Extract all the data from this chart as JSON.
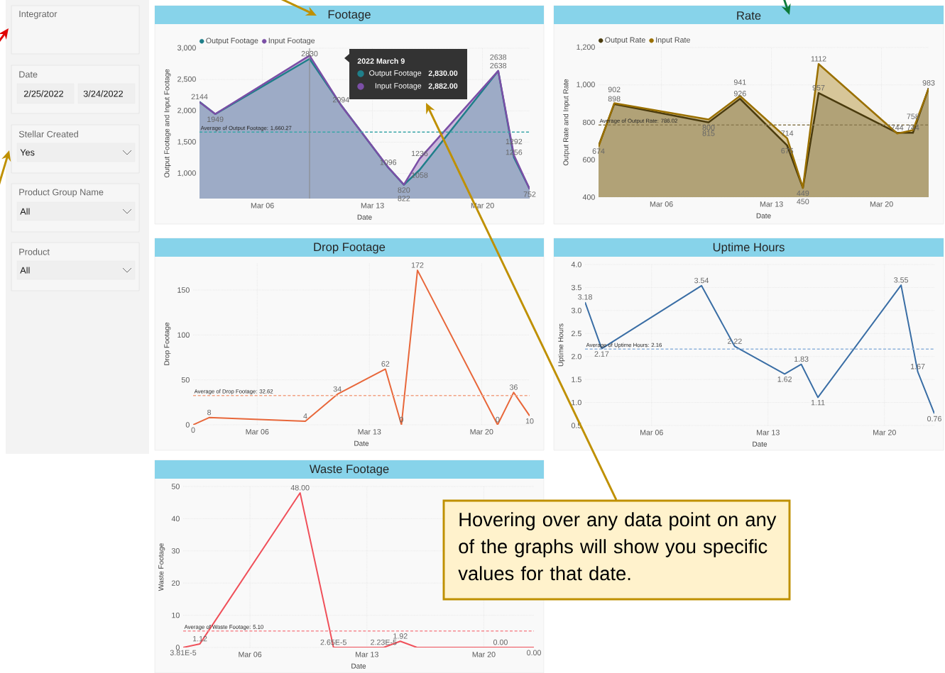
{
  "chart_data": [
    {
      "type": "other",
      "annotations": [
        "Integrator",
        "Date",
        "2/25/2022",
        "3/24/2022",
        "Stellar Created",
        "Yes",
        "Product Group Name",
        "All",
        "Product",
        "All"
      ]
    },
    {
      "type": "area",
      "title": "Footage",
      "xlabel": "Date",
      "ylabel": "Output Footage and Input Footage",
      "x": [
        "2022-03-02",
        "2022-03-03",
        "2022-03-09",
        "2022-03-11",
        "2022-03-14",
        "2022-03-15",
        "2022-03-16",
        "2022-03-21",
        "2022-03-22",
        "2022-03-23"
      ],
      "xlim": [
        "2022-03-02",
        "2022-03-23"
      ],
      "xticks": [
        {
          "value": "2022-03-06",
          "label": "Mar 06"
        },
        {
          "value": "2022-03-13",
          "label": "Mar 13"
        },
        {
          "value": "2022-03-20",
          "label": "Mar 20"
        }
      ],
      "ylim": [
        600,
        3000
      ],
      "yticks": [
        {
          "value": 1000,
          "label": "1,000"
        },
        {
          "value": 1500,
          "label": "1,500"
        },
        {
          "value": 2000,
          "label": "2,000"
        },
        {
          "value": 2500,
          "label": "2,500"
        },
        {
          "value": 3000,
          "label": "3,000"
        }
      ],
      "grid": true,
      "legend": "top left",
      "series": [
        {
          "name": "Output Footage",
          "color": "#1f7f8a",
          "values": [
            2144,
            1949,
            2830,
            2094,
            1096,
            820,
            1058,
            2638,
            1256,
            752
          ],
          "value_labels": [
            "2144",
            "1949",
            "2830",
            "2094",
            "1096",
            "820",
            "1058",
            "2638",
            "1256",
            "752"
          ]
        },
        {
          "name": "Input Footage",
          "color": "#7b4fa6",
          "values": [
            2140,
            1950,
            2882,
            2090,
            1100,
            822,
            1236,
            2638,
            1292,
            750
          ],
          "value_labels": [
            null,
            null,
            null,
            null,
            null,
            "822",
            "1236",
            "2638",
            "1292",
            null
          ]
        }
      ],
      "ref_lines": [
        {
          "axis": "y",
          "value": 1660.27,
          "label": "Average of Output Footage: 1,660.27",
          "color": "#3aa6a8",
          "line_style": "dashed"
        },
        {
          "axis": "x",
          "value": "2022-03-09",
          "color": "#8a8a8a",
          "line_style": "solid"
        }
      ],
      "annotations": [
        "2022 March 9",
        "Output Footage",
        "2,830.00",
        "Input Footage",
        "2,882.00"
      ]
    },
    {
      "type": "area",
      "title": "Rate",
      "xlabel": "Date",
      "ylabel": "Output Rate and Input Rate",
      "x": [
        "2022-03-02",
        "2022-03-03",
        "2022-03-09",
        "2022-03-11",
        "2022-03-14",
        "2022-03-15",
        "2022-03-16",
        "2022-03-21",
        "2022-03-22",
        "2022-03-23"
      ],
      "xlim": [
        "2022-03-02",
        "2022-03-23"
      ],
      "xticks": [
        {
          "value": "2022-03-06",
          "label": "Mar 06"
        },
        {
          "value": "2022-03-13",
          "label": "Mar 13"
        },
        {
          "value": "2022-03-20",
          "label": "Mar 20"
        }
      ],
      "ylim": [
        400,
        1200
      ],
      "yticks": [
        400,
        600,
        800,
        {
          "value": 1000,
          "label": "1,000"
        },
        {
          "value": 1200,
          "label": "1,200"
        }
      ],
      "grid": true,
      "legend": "top left",
      "series": [
        {
          "name": "Output Rate",
          "color": "#4a3b0e",
          "values": [
            674,
            898,
            800,
            926,
            676,
            449,
            957,
            744,
            744,
            983
          ],
          "value_labels": [
            "674",
            "898",
            "800",
            "926",
            "676",
            "449",
            "957",
            "744",
            "744",
            "983"
          ]
        },
        {
          "name": "Input Rate",
          "color": "#9a7000",
          "values": [
            670,
            902,
            815,
            941,
            714,
            450,
            1112,
            740,
            758,
            980
          ],
          "value_labels": [
            null,
            "902",
            "815",
            "941",
            "714",
            "450",
            "1112",
            null,
            "758",
            null
          ]
        }
      ],
      "ref_lines": [
        {
          "axis": "y",
          "value": 786.02,
          "label": "Average of Output Rate: 786.02",
          "color": "#8a7a50",
          "line_style": "dashed"
        }
      ]
    },
    {
      "type": "line",
      "title": "Drop Footage",
      "xlabel": "Date",
      "ylabel": "Drop Footage",
      "x": [
        "2022-03-02",
        "2022-03-03",
        "2022-03-09",
        "2022-03-11",
        "2022-03-14",
        "2022-03-15",
        "2022-03-16",
        "2022-03-21",
        "2022-03-22",
        "2022-03-23"
      ],
      "xlim": [
        "2022-03-02",
        "2022-03-23"
      ],
      "xticks": [
        {
          "value": "2022-03-06",
          "label": "Mar 06"
        },
        {
          "value": "2022-03-13",
          "label": "Mar 13"
        },
        {
          "value": "2022-03-20",
          "label": "Mar 20"
        }
      ],
      "ylim": [
        0,
        180
      ],
      "yticks": [
        0,
        50,
        100,
        150
      ],
      "grid": true,
      "series": [
        {
          "color": "#e8673a",
          "values": [
            0,
            8,
            4,
            34,
            62,
            0,
            172,
            0,
            36,
            10
          ],
          "value_labels": [
            "0",
            "8",
            "4",
            "34",
            "62",
            "0",
            "172",
            "0",
            "36",
            "10"
          ]
        }
      ],
      "ref_lines": [
        {
          "axis": "y",
          "value": 32.62,
          "label": "Average of Drop Footage: 32.62",
          "color": "#f2a283",
          "line_style": "dashed"
        }
      ]
    },
    {
      "type": "line",
      "title": "Uptime Hours",
      "xlabel": "Date",
      "ylabel": "Uptime Hours",
      "x": [
        "2022-03-02",
        "2022-03-03",
        "2022-03-09",
        "2022-03-11",
        "2022-03-14",
        "2022-03-15",
        "2022-03-16",
        "2022-03-21",
        "2022-03-22",
        "2022-03-23"
      ],
      "xlim": [
        "2022-03-02",
        "2022-03-23"
      ],
      "xticks": [
        {
          "value": "2022-03-06",
          "label": "Mar 06"
        },
        {
          "value": "2022-03-13",
          "label": "Mar 13"
        },
        {
          "value": "2022-03-20",
          "label": "Mar 20"
        }
      ],
      "ylim": [
        0.5,
        4.0
      ],
      "yticks": [
        0.5,
        {
          "value": 1,
          "label": "1.0"
        },
        1.5,
        {
          "value": 2,
          "label": "2.0"
        },
        2.5,
        {
          "value": 3,
          "label": "3.0"
        },
        3.5,
        {
          "value": 4,
          "label": "4.0"
        }
      ],
      "grid": true,
      "series": [
        {
          "color": "#3a6ea5",
          "values": [
            3.18,
            2.17,
            3.54,
            2.22,
            1.62,
            1.83,
            1.11,
            3.55,
            1.67,
            0.76
          ],
          "value_labels": [
            "3.18",
            "2.17",
            "3.54",
            "2.22",
            "1.62",
            "1.83",
            "1.11",
            "3.55",
            "1.67",
            "0.76"
          ]
        }
      ],
      "ref_lines": [
        {
          "axis": "y",
          "value": 2.16,
          "label": "Average of Uptime Hours: 2.16",
          "color": "#8fb3dc",
          "line_style": "dashed"
        }
      ]
    },
    {
      "type": "line",
      "title": "Waste Footage",
      "xlabel": "Date",
      "ylabel": "Waste Footage",
      "x": [
        "2022-03-02",
        "2022-03-03",
        "2022-03-09",
        "2022-03-11",
        "2022-03-14",
        "2022-03-15",
        "2022-03-16",
        "2022-03-21",
        "2022-03-22",
        "2022-03-23"
      ],
      "xlim": [
        "2022-03-02",
        "2022-03-23"
      ],
      "xticks": [
        {
          "value": "2022-03-06",
          "label": "Mar 06"
        },
        {
          "value": "2022-03-13",
          "label": "Mar 13"
        },
        {
          "value": "2022-03-20",
          "label": "Mar 20"
        }
      ],
      "ylim": [
        0,
        50
      ],
      "yticks": [
        0,
        10,
        20,
        30,
        40,
        50
      ],
      "grid": true,
      "series": [
        {
          "color": "#f0505a",
          "values": [
            3.81e-05,
            1.12,
            48.0,
            2.65e-05,
            2.23e-05,
            1.92,
            0,
            0,
            0,
            0
          ],
          "value_labels": [
            "3.81E-5",
            "1.12",
            "48.00",
            "2.65E-5",
            "2.23E-5",
            "1.92",
            null,
            "0.00",
            null,
            "0.00"
          ]
        }
      ],
      "ref_lines": [
        {
          "axis": "y",
          "value": 5.1,
          "label": "Average of Waste Footage: 5.10",
          "color": "#f58a90",
          "line_style": "dashed"
        }
      ]
    },
    {
      "type": "other",
      "annotations": [
        "Hovering over any data point on any of the graphs will show you specific values for that date."
      ]
    }
  ]
}
